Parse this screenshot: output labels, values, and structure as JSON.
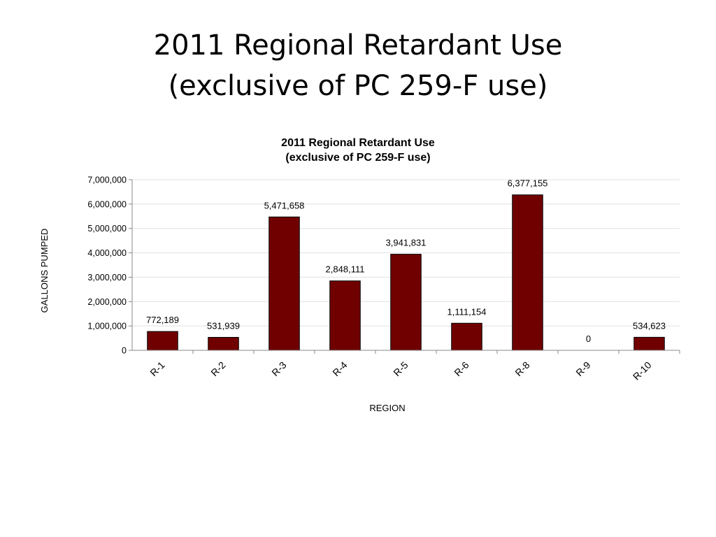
{
  "slide": {
    "title_line1": "2011 Regional Retardant Use",
    "title_line2": "(exclusive of PC 259-F use)"
  },
  "chart_data": {
    "type": "bar",
    "title": "2011 Regional Retardant Use",
    "subtitle": "(exclusive of PC 259-F use)",
    "xlabel": "REGION",
    "ylabel": "GALLONS PUMPED",
    "categories": [
      "R-1",
      "R-2",
      "R-3",
      "R-4",
      "R-5",
      "R-6",
      "R-8",
      "R-9",
      "R-10"
    ],
    "values": [
      772189,
      531939,
      5471658,
      2848111,
      3941831,
      1111154,
      6377155,
      0,
      534623
    ],
    "data_labels": [
      "772,189",
      "531,939",
      "5,471,658",
      "2,848,111",
      "3,941,831",
      "1,111,154",
      "6,377,155",
      "0",
      "534,623"
    ],
    "ylim": [
      0,
      7000000
    ],
    "yticks": [
      0,
      1000000,
      2000000,
      3000000,
      4000000,
      5000000,
      6000000,
      7000000
    ],
    "ytick_labels": [
      "0",
      "1,000,000",
      "2,000,000",
      "3,000,000",
      "4,000,000",
      "5,000,000",
      "6,000,000",
      "7,000,000"
    ],
    "grid": true,
    "legend": "none",
    "bar_color": "#700000"
  }
}
